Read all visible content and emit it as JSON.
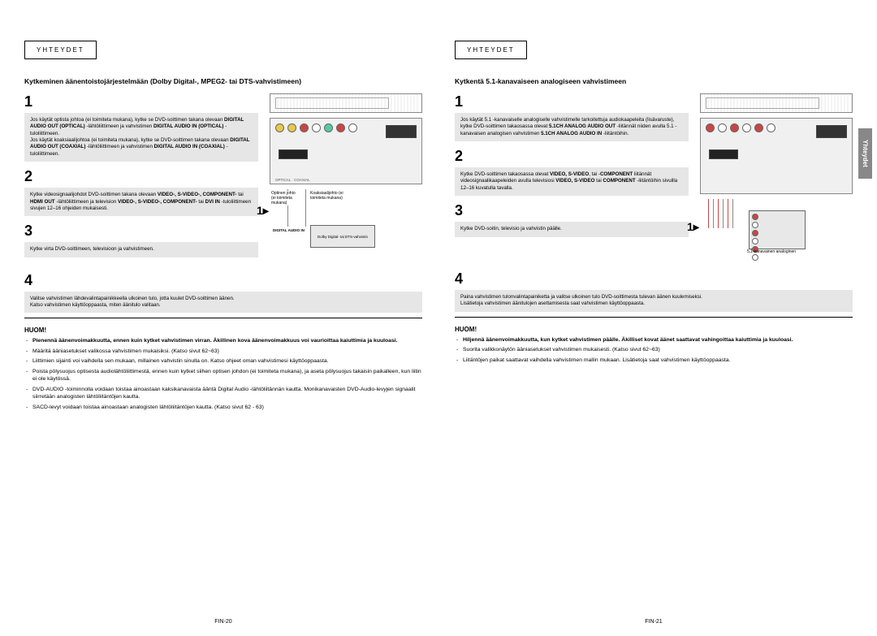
{
  "sideTab": "Yhteydet",
  "left": {
    "header": "Yhteydet",
    "title": "Kytkeminen äänentoistojärjestelmään (Dolby Digital-, MPEG2- tai DTS-vahvistimeen)",
    "steps": [
      "Jos käytät optista johtoa (ei toimiteta mukana), kytke se DVD-soittimen takana olevaan <b>DIGITAL AUDIO OUT (OPTICAL)</b> -lähtöliittimeen ja vahvistimen <b>DIGITAL AUDIO IN (OPTICAL)</b> -tuloliittimeen.<br>Jos käytät koaksiaalijohtoa (ei toimiteta mukana), kytke se DVD-soittimen takana olevaan <b>DIGITAL AUDIO OUT (COAXIAL)</b> -lähtöliittimeen ja vahvistimen <b>DIGITAL AUDIO IN (COAXIAL)</b> -tuloliittimeen.",
      "Kytke videosignaalijohdot DVD-soittimen takana olevaan <b>VIDEO-, S-VIDEO-, COMPONENT-</b> tai <b>HDMI OUT</b> -lähtöliittimeen ja television <b>VIDEO-, S-VIDEO-, COMPONENT-</b> tai <b>DVI IN</b> -tuloliittimeen sivujen 12–16 ohjeiden mukaisesti.",
      "Kytke virta DVD-soittimeen, televisioon ja vahvistimeen.",
      "Valitse vahvistimen lähdevalintapainikkeella ulkoinen tulo, jotta kuulet DVD-soittimen äänen.<br>Katso vahvistimen käyttöoppaasta, miten äänitulo valitaan."
    ],
    "huomTitle": "HUOM!",
    "notes": [
      {
        "t": "Pienennä äänenvoimakkuutta, ennen kuin kytket vahvistimen virran. Äkillinen kova äänenvoimakkuus voi vaurioittaa kaiuttimia ja kuuloasi.",
        "bold": true
      },
      {
        "t": "Määritä ääniasetukset valikossa vahvistimen mukaisiksi. (Katso sivut 62~63)"
      },
      {
        "t": "Liittimien sijainti voi vaihdella sen mukaan, millainen vahvistin sinulla on. Katso ohjeet oman vahvistimesi käyttöoppaasta."
      },
      {
        "t": "Poista pölysuojus optisesta audiolähtöliittimestä, ennen kuin kytket siihen optisen johdon (ei toimiteta mukana), ja aseta pölysuojus takaisin paikalleen, kun liitin ei ole käytössä."
      },
      {
        "t": "DVD-AUDIO -toiminnolla voidaan toistaa ainoastaan kaksikanavaista ääntä Digital Audio -lähtöliitännän kautta. Monikanavaisten DVD-Audio-levyjen signaalit siirretään analogisten lähtöliitäntöjen kautta."
      },
      {
        "t": "SACD-levyt voidaan toistaa ainoastaan analogisten lähtöliitäntöjen kautta. (Katso sivut 62 - 63)"
      }
    ],
    "diagramLabels": {
      "optical": "Optinen johto (ei toimiteta mukana)",
      "coax": "Koaksiaalijohto (ei toimiteta mukana)",
      "amp": "Dolby Digital- tai DTS-vahvistin",
      "audioIn": "DIGITAL AUDIO IN"
    },
    "pageNum": "FIN-20"
  },
  "right": {
    "header": "Yhteydet",
    "title": "Kytkentä 5.1-kanavaiseen analogiseen vahvistimeen",
    "steps": [
      "Jos käytät 5.1 -kanavaiselle analogiselle vahvistimelle tarkoitettuja audiokaapeleita (lisävaruste), kytke DVD-soittimen takaosassa olevat <b>5.1CH ANALOG AUDIO OUT</b> -liitännät niiden avulla 5.1 -kanavaisen analogisen vahvistimen <b>5.1CH ANALOG AUDIO IN</b> -liitäntöihin.",
      "Kytke DVD-soittimen takaosassa olevat <b>VIDEO, S-VIDEO</b>, tai -<b>COMPONENT</b> liitännät videosignaalikaapeleiden avulla televisiosi <b>VIDEO, S-VIDEO</b> tai <b>COMPONENT</b> -liitäntöihin sivuilla 12–16 kuvatulla tavalla.",
      "Kytke DVD-soitin, televisio ja vahvistin päälle.",
      "Paina vahvistimen tulonvalintapainiketta ja valitse ulkoinen tulo DVD-soittimesta tulevan äänen kuulemiseksi.<br>Lisätietoja vahvistimen äänitulojen asettamisesta saat vahvistimen käyttöoppaasta."
    ],
    "huomTitle": "HUOM!",
    "notes": [
      {
        "t": "Hiljennä äänenvoimakkuutta, kun kytket vahvistimen päälle. Äkilliset kovat äänet saattavat vahingoittaa kaiuttimia ja kuuloasi.",
        "bold": true
      },
      {
        "t": "Suorita valikkonäytön ääniasetukset vahvistimen mukaisesti. (Katso sivut 62~63)"
      },
      {
        "t": "Liitäntöjen paikat saattavat vaihdella vahvistimen mallin mukaan. Lisätietoja saat vahvistimen käyttöoppaasta."
      }
    ],
    "ampLabel": "5,1-kanavainen analoginen",
    "pageNum": "FIN-21"
  },
  "colors": {
    "grayBox": "#e6e6e6",
    "tab": "#888888"
  }
}
